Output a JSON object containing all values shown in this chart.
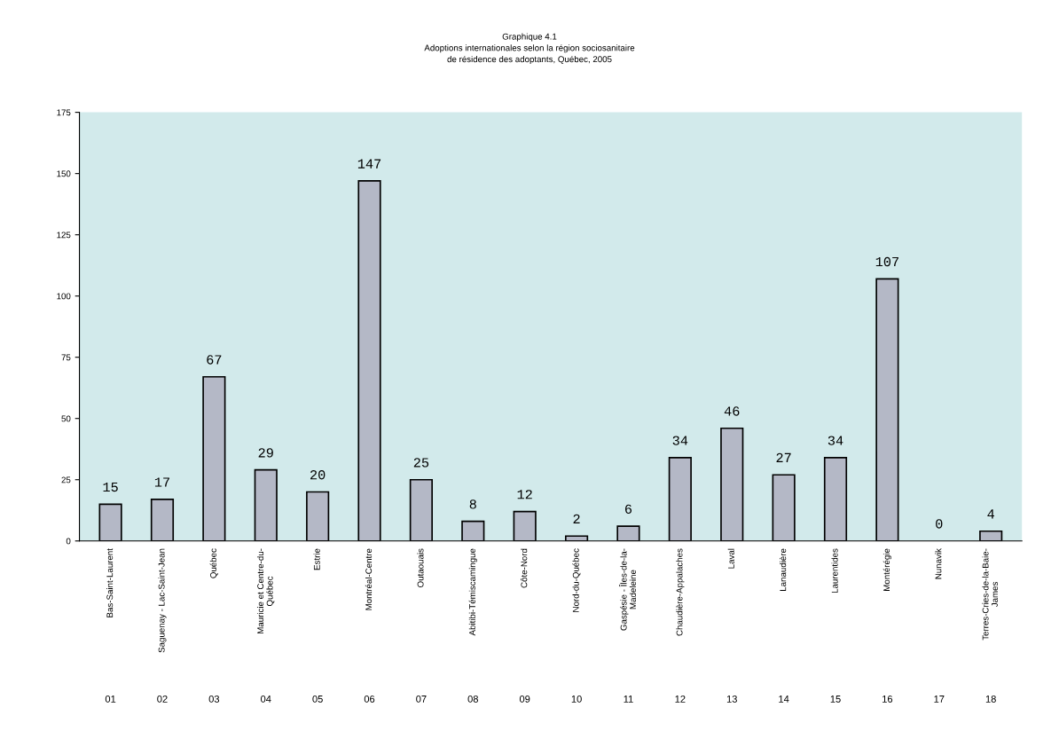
{
  "chart_data": {
    "type": "bar",
    "title": "Graphique 4.1",
    "subtitle": "Adoptions internationales selon la région sociosanitaire\nde résidence des adoptants, Québec, 2005",
    "categories": [
      "Bas-Saint-Laurent",
      "Saguenay - Lac-Saint-Jean",
      "Québec",
      "Mauricie et Centre-du-\nQuébec",
      "Estrie",
      "Montréal-Centre",
      "Outaouais",
      "Abitibi-Témiscamingue",
      "Côte-Nord",
      "Nord-du-Québec",
      "Gaspésie - Îles-de-la-\nMadeleine",
      "Chaudière-Appalaches",
      "Laval",
      "Lanaudière",
      "Laurentides",
      "Montérégie",
      "Nunavik",
      "Terres-Cries-de-la-Baie-\nJames"
    ],
    "values": [
      15,
      17,
      67,
      29,
      20,
      147,
      25,
      8,
      12,
      2,
      6,
      34,
      46,
      27,
      34,
      107,
      0,
      4
    ],
    "color": "#b4b8c6",
    "ylim": [
      0,
      175
    ],
    "yticks": [
      0,
      25,
      50,
      75,
      100,
      125,
      150,
      175
    ],
    "data_labels": true,
    "grid": false,
    "legend": false,
    "annotations": [
      "01",
      "02",
      "03",
      "04",
      "05",
      "06",
      "07",
      "08",
      "09",
      "10",
      "11",
      "12",
      "13",
      "14",
      "15",
      "16",
      "17",
      "18"
    ]
  }
}
